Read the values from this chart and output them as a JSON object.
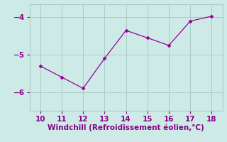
{
  "x": [
    10,
    11,
    12,
    13,
    14,
    15,
    16,
    17,
    18
  ],
  "y": [
    -5.3,
    -5.6,
    -5.9,
    -5.1,
    -4.35,
    -4.55,
    -4.75,
    -4.1,
    -3.97
  ],
  "xlim": [
    9.5,
    18.5
  ],
  "ylim": [
    -6.5,
    -3.65
  ],
  "xticks": [
    10,
    11,
    12,
    13,
    14,
    15,
    16,
    17,
    18
  ],
  "yticks": [
    -6,
    -5,
    -4
  ],
  "xlabel": "Windchill (Refroidissement éolien,°C)",
  "line_color": "#990099",
  "marker": "D",
  "marker_size": 2.5,
  "bg_color": "#ceeae6",
  "grid_color": "#aaccc8",
  "tick_color": "#880088",
  "xlabel_color": "#880088",
  "xlabel_fontsize": 7.5,
  "tick_fontsize": 7.5
}
